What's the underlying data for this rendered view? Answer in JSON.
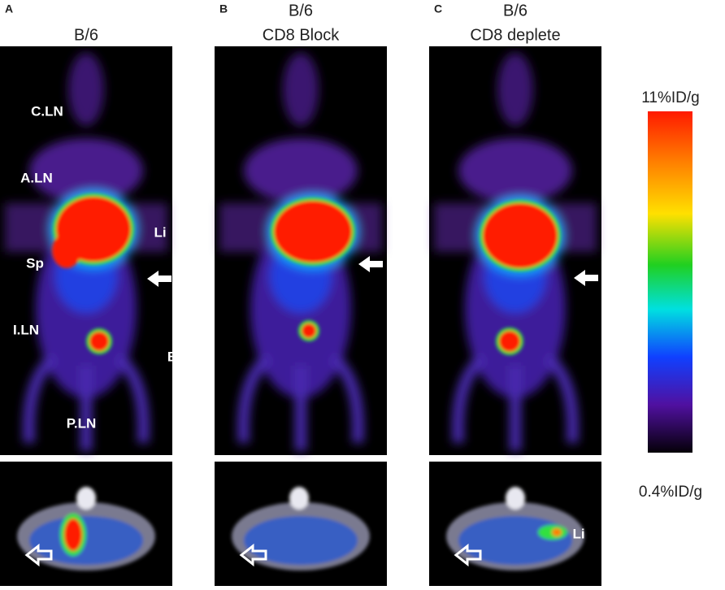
{
  "panels": [
    {
      "letter": "A",
      "title": [
        "B/6"
      ],
      "labels": [
        "C.LN",
        "A.LN",
        "Li",
        "Sp",
        "I.LN",
        "B",
        "P.LN"
      ],
      "bottom_labels": []
    },
    {
      "letter": "B",
      "title": [
        "B/6",
        "CD8 Block"
      ],
      "labels": [],
      "bottom_labels": []
    },
    {
      "letter": "C",
      "title": [
        "B/6",
        "CD8 deplete"
      ],
      "labels": [],
      "bottom_labels": [
        "Li"
      ]
    }
  ],
  "colorbar": {
    "max_label": "11%ID/g",
    "min_label": "0.4%ID/g"
  }
}
